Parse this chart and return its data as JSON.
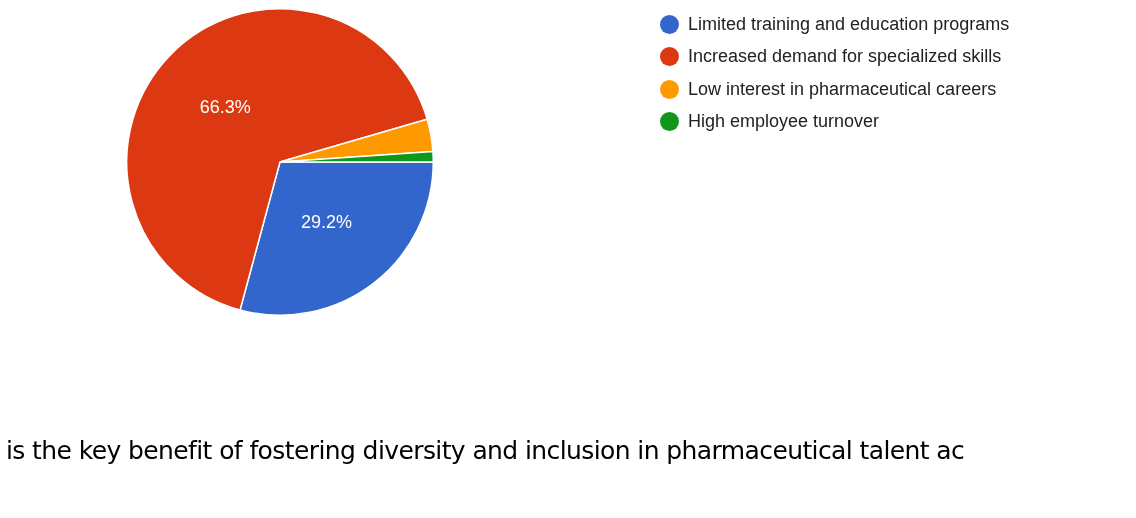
{
  "chart_data": {
    "type": "pie",
    "categories": [
      "Limited training and education programs",
      "Increased demand for specialized skills",
      "Low interest in pharmaceutical careers",
      "High employee turnover"
    ],
    "values": [
      29.2,
      66.3,
      3.4,
      1.1
    ],
    "colors": [
      "#3366cc",
      "#dc3912",
      "#ff9900",
      "#109618"
    ],
    "value_labels": [
      "29.2%",
      "66.3%",
      null,
      null
    ],
    "legend": "right",
    "annotations": [
      "is the key benefit of fostering diversity and inclusion in pharmaceutical talent ac"
    ]
  }
}
